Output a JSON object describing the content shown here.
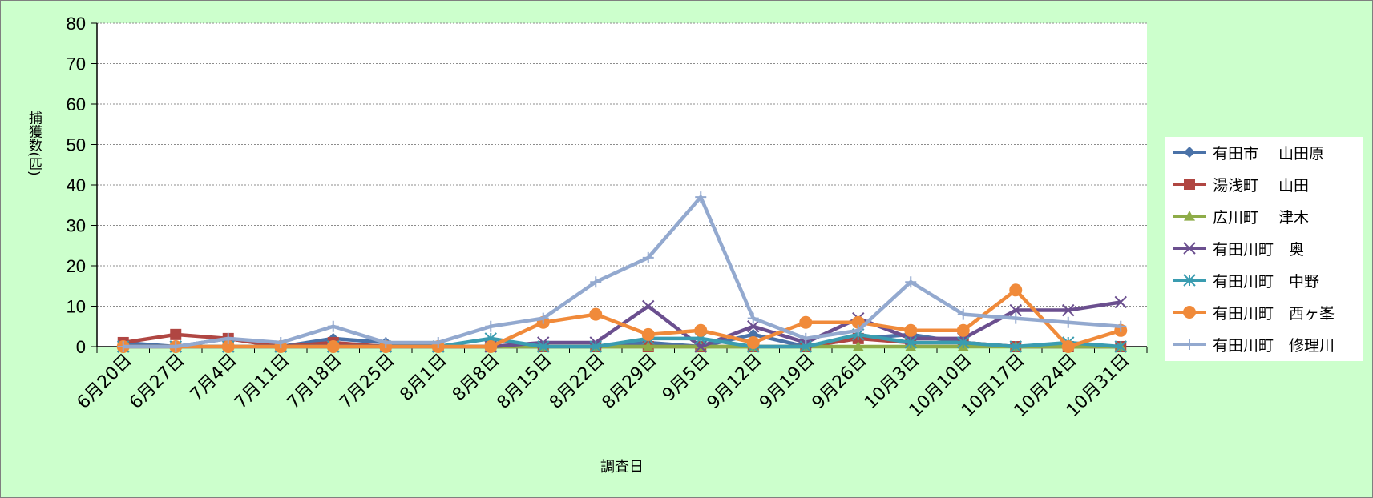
{
  "chart_data": {
    "type": "line",
    "xlabel": "調査日",
    "ylabel": "捕獲数(匹)",
    "ylim": [
      0,
      80
    ],
    "yticks": [
      0,
      10,
      20,
      30,
      40,
      50,
      60,
      70,
      80
    ],
    "grid": true,
    "legend_position": "right",
    "categories": [
      "6月20日",
      "6月27日",
      "7月4日",
      "7月11日",
      "7月18日",
      "7月25日",
      "8月1日",
      "8月8日",
      "8月15日",
      "8月22日",
      "8月29日",
      "9月5日",
      "9月12日",
      "9月19日",
      "9月26日",
      "10月3日",
      "10月10日",
      "10月17日",
      "10月24日",
      "10月31日"
    ],
    "series": [
      {
        "name": "有田市　 山田原",
        "color": "#4a72a8",
        "marker": "diamond",
        "values": [
          1,
          0,
          2,
          0,
          2,
          1,
          0,
          0,
          0,
          0,
          1,
          0,
          3,
          0,
          2,
          3,
          1,
          0,
          0,
          0
        ]
      },
      {
        "name": "湯浅町　 山田",
        "color": "#b04642",
        "marker": "square",
        "values": [
          1,
          3,
          2,
          0,
          1,
          0,
          0,
          0,
          0,
          0,
          0,
          0,
          0,
          0,
          2,
          1,
          1,
          0,
          0,
          0
        ]
      },
      {
        "name": "広川町　 津木",
        "color": "#8eac48",
        "marker": "triangle",
        "values": [
          0,
          0,
          0,
          0,
          0,
          0,
          0,
          0,
          0,
          0,
          0,
          0,
          0,
          0,
          0,
          0,
          0,
          0,
          0,
          0
        ]
      },
      {
        "name": "有田川町　奥",
        "color": "#6b4f8f",
        "marker": "x",
        "values": [
          0,
          0,
          0,
          0,
          0,
          0,
          0,
          0,
          1,
          1,
          10,
          0,
          5,
          1,
          7,
          2,
          2,
          9,
          9,
          11
        ]
      },
      {
        "name": "有田川町　中野",
        "color": "#3a9cb0",
        "marker": "star",
        "values": [
          0,
          0,
          0,
          0,
          0,
          0,
          0,
          2,
          0,
          0,
          2,
          2,
          0,
          0,
          3,
          1,
          1,
          0,
          1,
          0
        ]
      },
      {
        "name": "有田川町　西ヶ峯",
        "color": "#f08a3a",
        "marker": "circle",
        "values": [
          0,
          0,
          0,
          0,
          0,
          0,
          0,
          0,
          6,
          8,
          3,
          4,
          1,
          6,
          6,
          4,
          4,
          14,
          0,
          4
        ]
      },
      {
        "name": "有田川町　修理川",
        "color": "#93a9cf",
        "marker": "plus",
        "values": [
          0,
          0,
          2,
          1,
          5,
          1,
          1,
          5,
          7,
          16,
          22,
          37,
          7,
          2,
          4,
          16,
          8,
          7,
          6,
          5
        ]
      }
    ]
  }
}
